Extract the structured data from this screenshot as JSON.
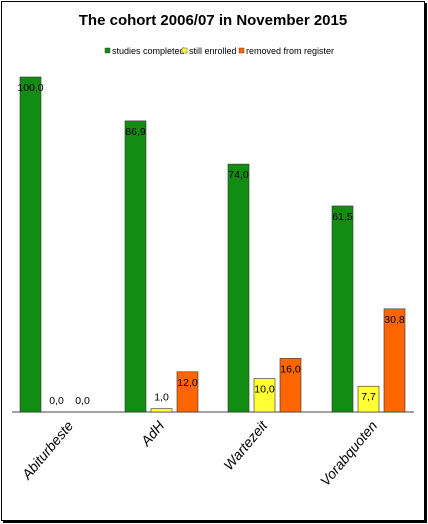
{
  "chart_data": {
    "type": "bar",
    "title": "The cohort 2006/07 in November 2015",
    "categories": [
      "Abiturbeste",
      "AdH",
      "Wartezeit",
      "Vorabquoten"
    ],
    "series": [
      {
        "name": "studies completed",
        "color": "#138c13",
        "values": [
          100.0,
          86.9,
          74.0,
          61.5
        ],
        "labels": [
          "100,0",
          "86,9",
          "74,0",
          "61,5"
        ]
      },
      {
        "name": "still enrolled",
        "color": "#ffff33",
        "values": [
          0.0,
          1.0,
          10.0,
          7.7
        ],
        "labels": [
          "0,0",
          "1,0",
          "10,0",
          "7,7"
        ]
      },
      {
        "name": "removed from register",
        "color": "#ff6600",
        "values": [
          0.0,
          12.0,
          16.0,
          30.8
        ],
        "labels": [
          "0,0",
          "12,0",
          "16,0",
          "30,8"
        ]
      }
    ],
    "ylim": [
      0,
      100
    ],
    "grid": false,
    "legend_position": "top"
  }
}
